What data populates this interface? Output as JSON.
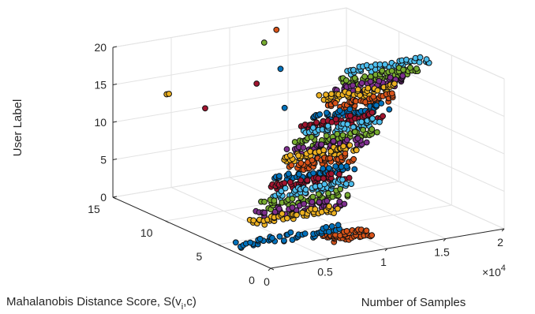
{
  "chart_data": {
    "type": "scatter",
    "title": "",
    "xlabel": "Number of Samples",
    "ylabel": "Mahalanobis Distance Score, S(v",
    "ylabel_sub": "i",
    "ylabel_tail": ",c)",
    "zlabel": "User Label",
    "x_multiplier": "×10",
    "x_multiplier_exp": "4",
    "xlim": [
      0,
      2
    ],
    "ylim": [
      0,
      15
    ],
    "zlim": [
      0,
      20
    ],
    "x_ticks": [
      "0",
      "0.5",
      "1",
      "1.5",
      "2"
    ],
    "y_ticks": [
      "0",
      "5",
      "10",
      "15"
    ],
    "z_ticks": [
      "0",
      "5",
      "10",
      "15",
      "20"
    ],
    "grid": true,
    "series": [
      {
        "color": "#0072BD",
        "z": 1,
        "x_start": 0.0,
        "x_end": 0.9,
        "y": 3.2
      },
      {
        "color": "#D95319",
        "z": 2,
        "x_start": 0.55,
        "x_end": 0.9,
        "y": 0.7
      },
      {
        "color": "#EDB120",
        "z": 3,
        "x_start": 0.2,
        "x_end": 0.92,
        "y": 4.0
      },
      {
        "color": "#7E2F8E",
        "z": 4,
        "x_start": 0.25,
        "x_end": 0.95,
        "y": 3.8
      },
      {
        "color": "#77AC30",
        "z": 5,
        "x_start": 0.3,
        "x_end": 1.0,
        "y": 4.0
      },
      {
        "color": "#4DBEEE",
        "z": 6,
        "x_start": 0.4,
        "x_end": 1.05,
        "y": 4.2
      },
      {
        "color": "#A2142F",
        "z": 7,
        "x_start": 0.4,
        "x_end": 1.0,
        "y": 4.2
      },
      {
        "color": "#0072BD",
        "z": 8,
        "x_start": 0.45,
        "x_end": 1.05,
        "y": 4.2
      },
      {
        "color": "#D95319",
        "z": 9,
        "x_start": 0.6,
        "x_end": 1.1,
        "y": 4.6
      },
      {
        "color": "#EDB120",
        "z": 10,
        "x_start": 0.55,
        "x_end": 1.15,
        "y": 4.8
      },
      {
        "color": "#7E2F8E",
        "z": 11,
        "x_start": 0.6,
        "x_end": 1.2,
        "y": 4.6
      },
      {
        "color": "#77AC30",
        "z": 12,
        "x_start": 0.65,
        "x_end": 1.3,
        "y": 4.6
      },
      {
        "color": "#4DBEEE",
        "z": 13,
        "x_start": 0.75,
        "x_end": 1.35,
        "y": 4.8
      },
      {
        "color": "#A2142F",
        "z": 14,
        "x_start": 0.7,
        "x_end": 1.35,
        "y": 4.6
      },
      {
        "color": "#0072BD",
        "z": 15,
        "x_start": 0.8,
        "x_end": 1.4,
        "y": 4.6
      },
      {
        "color": "#D95319",
        "z": 16,
        "x_start": 0.95,
        "x_end": 1.5,
        "y": 4.8
      },
      {
        "color": "#EDB120",
        "z": 17,
        "x_start": 0.9,
        "x_end": 1.55,
        "y": 5.0
      },
      {
        "color": "#7E2F8E",
        "z": 18,
        "x_start": 1.0,
        "x_end": 1.6,
        "y": 4.8
      },
      {
        "color": "#77AC30",
        "z": 19,
        "x_start": 1.05,
        "x_end": 1.7,
        "y": 4.8
      },
      {
        "color": "#4DBEEE",
        "z": 20,
        "x_start": 1.1,
        "x_end": 1.8,
        "y": 5.0
      }
    ],
    "outliers": [
      {
        "x": 0.1,
        "y": 11.0,
        "z": 16,
        "color": "#EDB120"
      },
      {
        "x": 0.12,
        "y": 11.0,
        "z": 16,
        "color": "#EDB120"
      },
      {
        "x": 0.25,
        "y": 9.0,
        "z": 15,
        "color": "#A2142F"
      },
      {
        "x": 0.6,
        "y": 8.0,
        "z": 18,
        "color": "#A2142F"
      },
      {
        "x": 0.8,
        "y": 9.5,
        "z": 22,
        "color": "#77AC30"
      },
      {
        "x": 0.95,
        "y": 10.0,
        "z": 23,
        "color": "#D95319"
      },
      {
        "x": 1.2,
        "y": 11.0,
        "z": 28,
        "color": "#77AC30"
      },
      {
        "x": 0.85,
        "y": 8.5,
        "z": 19,
        "color": "#0072BD"
      },
      {
        "x": 0.75,
        "y": 7.0,
        "z": 15,
        "color": "#0072BD"
      }
    ]
  }
}
